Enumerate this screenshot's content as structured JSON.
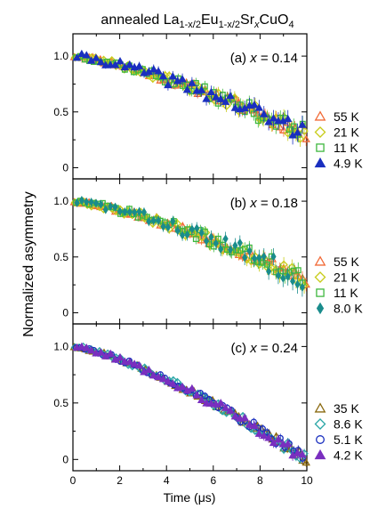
{
  "chart_data": {
    "type": "scatter",
    "title": {
      "prefix": "annealed La",
      "sub1": "1-x/2",
      "mid1": "Eu",
      "sub2": "1-x/2",
      "mid2": "Sr",
      "sub3": "x",
      "suffix": "CuO",
      "sub4": "4"
    },
    "xlabel": "Time (μs)",
    "ylabel": "Normalized asymmetry",
    "xlim": [
      0,
      10
    ],
    "ylim": [
      -0.1,
      1.2
    ],
    "xticks": [
      0,
      2,
      4,
      6,
      8,
      10
    ],
    "yticks": [
      0,
      0.5,
      1.0
    ],
    "ytick_labels": [
      "0",
      "0.5",
      "1.0"
    ],
    "legend_placement": "right",
    "grid": false,
    "panels": [
      {
        "label": "(a) x = 0.14",
        "x_value": "0.14",
        "fit": {
          "y0": 1.0,
          "y10": 0.3
        },
        "series": [
          {
            "name": "55 K",
            "marker": "triangle-up-open",
            "color": "#f26b38",
            "noise": 0.05,
            "seed": 11
          },
          {
            "name": "21 K",
            "marker": "diamond-open",
            "color": "#c8cc1a",
            "noise": 0.06,
            "seed": 23
          },
          {
            "name": "11 K",
            "marker": "square-open",
            "color": "#3fb83f",
            "noise": 0.06,
            "seed": 37
          },
          {
            "name": "4.9 K",
            "marker": "triangle-up-filled",
            "color": "#1a2fbf",
            "noise": 0.07,
            "seed": 41
          }
        ]
      },
      {
        "label": "(b) x = 0.18",
        "x_value": "0.18",
        "fit": {
          "y0": 1.0,
          "y10": 0.3
        },
        "series": [
          {
            "name": "55 K",
            "marker": "triangle-up-open",
            "color": "#f26b38",
            "noise": 0.05,
            "seed": 53
          },
          {
            "name": "21 K",
            "marker": "diamond-open",
            "color": "#c8cc1a",
            "noise": 0.06,
            "seed": 67
          },
          {
            "name": "11 K",
            "marker": "square-open",
            "color": "#3fb83f",
            "noise": 0.06,
            "seed": 71
          },
          {
            "name": "8.0 K",
            "marker": "diamond-filled",
            "color": "#1a8c8c",
            "noise": 0.07,
            "seed": 83
          }
        ]
      },
      {
        "label": "(c) x = 0.24",
        "x_value": "0.24",
        "fit": {
          "y0": 1.0,
          "y10": 0.0
        },
        "series": [
          {
            "name": "35 K",
            "marker": "triangle-up-open",
            "color": "#8a6a10",
            "noise": 0.03,
            "seed": 97
          },
          {
            "name": "8.6 K",
            "marker": "diamond-open",
            "color": "#2aa6a6",
            "noise": 0.035,
            "seed": 101
          },
          {
            "name": "5.1 K",
            "marker": "circle-open",
            "color": "#1a2fbf",
            "noise": 0.035,
            "seed": 113
          },
          {
            "name": "4.2 K",
            "marker": "triangle-up-filled",
            "color": "#7a2fbf",
            "noise": 0.04,
            "seed": 127
          }
        ]
      }
    ]
  }
}
